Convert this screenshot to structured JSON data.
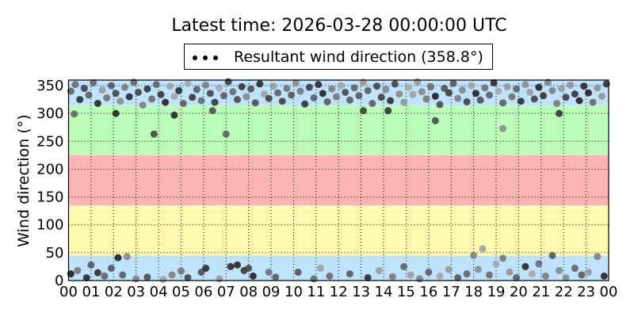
{
  "chart_data": {
    "type": "scatter",
    "title": "Latest time: 2026-03-28 00:00:00 UTC",
    "ylabel": "Wind direction (°)",
    "xlabel": "",
    "legend": {
      "label": "Resultant wind direction (358.8°)",
      "placement": "top-center-outside"
    },
    "xlim": [
      0,
      24
    ],
    "ylim": [
      0,
      360
    ],
    "grid": true,
    "x_tick_labels": [
      "00",
      "01",
      "02",
      "03",
      "04",
      "05",
      "06",
      "07",
      "08",
      "09",
      "10",
      "11",
      "12",
      "13",
      "14",
      "15",
      "16",
      "17",
      "18",
      "19",
      "20",
      "21",
      "22",
      "23",
      "00"
    ],
    "y_ticks": [
      0,
      50,
      100,
      150,
      200,
      250,
      300,
      350
    ],
    "bands": [
      {
        "from": 0,
        "to": 45,
        "color": "#bfe2fd"
      },
      {
        "from": 45,
        "to": 135,
        "color": "#fffbb0"
      },
      {
        "from": 135,
        "to": 225,
        "color": "#ffb4b4"
      },
      {
        "from": 225,
        "to": 315,
        "color": "#bbfdb9"
      },
      {
        "from": 315,
        "to": 360,
        "color": "#bfe2fd"
      }
    ],
    "points": [
      [
        0.1,
        340
      ],
      [
        0.3,
        352
      ],
      [
        0.5,
        325
      ],
      [
        0.7,
        345
      ],
      [
        0.9,
        333
      ],
      [
        1.1,
        355
      ],
      [
        1.3,
        318
      ],
      [
        1.5,
        342
      ],
      [
        1.7,
        328
      ],
      [
        1.9,
        350
      ],
      [
        2.1,
        336
      ],
      [
        2.3,
        322
      ],
      [
        2.5,
        347
      ],
      [
        2.7,
        330
      ],
      [
        2.9,
        356
      ],
      [
        3.1,
        338
      ],
      [
        3.3,
        315
      ],
      [
        3.5,
        344
      ],
      [
        3.7,
        326
      ],
      [
        3.9,
        352
      ],
      [
        4.1,
        334
      ],
      [
        4.3,
        320
      ],
      [
        4.5,
        349
      ],
      [
        4.7,
        331
      ],
      [
        4.9,
        341
      ],
      [
        5.1,
        318
      ],
      [
        5.3,
        354
      ],
      [
        5.5,
        329
      ],
      [
        5.7,
        343
      ],
      [
        5.9,
        323
      ],
      [
        6.1,
        351
      ],
      [
        6.3,
        336
      ],
      [
        6.5,
        320
      ],
      [
        6.7,
        346
      ],
      [
        6.9,
        332
      ],
      [
        7.1,
        357
      ],
      [
        7.3,
        339
      ],
      [
        7.5,
        325
      ],
      [
        7.7,
        348
      ],
      [
        7.9,
        330
      ],
      [
        8.1,
        344
      ],
      [
        8.3,
        319
      ],
      [
        8.5,
        353
      ],
      [
        8.7,
        335
      ],
      [
        8.9,
        327
      ],
      [
        9.1,
        349
      ],
      [
        9.3,
        337
      ],
      [
        9.5,
        322
      ],
      [
        9.7,
        345
      ],
      [
        9.9,
        333
      ],
      [
        10.1,
        355
      ],
      [
        10.3,
        340
      ],
      [
        10.5,
        317
      ],
      [
        10.7,
        347
      ],
      [
        10.9,
        328
      ],
      [
        11.1,
        352
      ],
      [
        11.3,
        336
      ],
      [
        11.5,
        321
      ],
      [
        11.7,
        344
      ],
      [
        11.9,
        330
      ],
      [
        12.1,
        350
      ],
      [
        12.3,
        338
      ],
      [
        12.5,
        324
      ],
      [
        12.7,
        346
      ],
      [
        12.9,
        332
      ],
      [
        13.1,
        356
      ],
      [
        13.3,
        341
      ],
      [
        13.5,
        318
      ],
      [
        13.7,
        349
      ],
      [
        13.9,
        329
      ],
      [
        14.1,
        343
      ],
      [
        14.3,
        323
      ],
      [
        14.5,
        353
      ],
      [
        14.7,
        335
      ],
      [
        14.9,
        320
      ],
      [
        15.1,
        347
      ],
      [
        15.3,
        334
      ],
      [
        15.5,
        357
      ],
      [
        15.7,
        339
      ],
      [
        15.9,
        326
      ],
      [
        16.1,
        348
      ],
      [
        16.3,
        331
      ],
      [
        16.5,
        316
      ],
      [
        16.7,
        345
      ],
      [
        16.9,
        337
      ],
      [
        17.1,
        354
      ],
      [
        17.3,
        327
      ],
      [
        17.5,
        342
      ],
      [
        17.7,
        321
      ],
      [
        17.9,
        350
      ],
      [
        18.1,
        336
      ],
      [
        18.3,
        324
      ],
      [
        18.5,
        346
      ],
      [
        18.7,
        333
      ],
      [
        18.9,
        355
      ],
      [
        19.1,
        340
      ],
      [
        19.3,
        319
      ],
      [
        19.5,
        348
      ],
      [
        19.7,
        330
      ],
      [
        19.9,
        344
      ],
      [
        20.1,
        322
      ],
      [
        20.3,
        352
      ],
      [
        20.5,
        338
      ],
      [
        20.7,
        326
      ],
      [
        20.9,
        347
      ],
      [
        21.1,
        332
      ],
      [
        21.3,
        356
      ],
      [
        21.5,
        341
      ],
      [
        21.7,
        318
      ],
      [
        21.9,
        345
      ],
      [
        22.1,
        329
      ],
      [
        22.3,
        351
      ],
      [
        22.5,
        335
      ],
      [
        22.7,
        323
      ],
      [
        22.9,
        349
      ],
      [
        23.1,
        337
      ],
      [
        23.3,
        320
      ],
      [
        23.5,
        346
      ],
      [
        23.7,
        331
      ],
      [
        23.9,
        353
      ],
      [
        0.25,
        299
      ],
      [
        2.1,
        300
      ],
      [
        3.8,
        263
      ],
      [
        7.0,
        263
      ],
      [
        4.7,
        297
      ],
      [
        6.4,
        305
      ],
      [
        13.1,
        305
      ],
      [
        16.3,
        287
      ],
      [
        19.3,
        273
      ],
      [
        14.2,
        305
      ],
      [
        21.8,
        300
      ],
      [
        0.1,
        12
      ],
      [
        0.4,
        18
      ],
      [
        0.8,
        5
      ],
      [
        1.0,
        28
      ],
      [
        1.3,
        14
      ],
      [
        1.6,
        8
      ],
      [
        1.9,
        22
      ],
      [
        2.2,
        41
      ],
      [
        2.6,
        43
      ],
      [
        2.4,
        10
      ],
      [
        3.0,
        3
      ],
      [
        3.5,
        6
      ],
      [
        4.2,
        2
      ],
      [
        4.6,
        10
      ],
      [
        5.0,
        17
      ],
      [
        5.3,
        5
      ],
      [
        5.9,
        15
      ],
      [
        6.1,
        22
      ],
      [
        6.7,
        3
      ],
      [
        7.2,
        25
      ],
      [
        7.5,
        28
      ],
      [
        7.8,
        18
      ],
      [
        8.0,
        22
      ],
      [
        8.2,
        8
      ],
      [
        8.9,
        15
      ],
      [
        9.2,
        6
      ],
      [
        10.2,
        15
      ],
      [
        10.9,
        3
      ],
      [
        11.2,
        22
      ],
      [
        11.6,
        8
      ],
      [
        12.5,
        12
      ],
      [
        13.3,
        5
      ],
      [
        13.8,
        18
      ],
      [
        14.4,
        7
      ],
      [
        14.9,
        25
      ],
      [
        15.2,
        10
      ],
      [
        15.6,
        3
      ],
      [
        16.0,
        15
      ],
      [
        16.5,
        8
      ],
      [
        16.9,
        20
      ],
      [
        17.3,
        5
      ],
      [
        17.7,
        12
      ],
      [
        18.0,
        45
      ],
      [
        18.2,
        20
      ],
      [
        18.4,
        57
      ],
      [
        18.7,
        10
      ],
      [
        19.0,
        30
      ],
      [
        19.3,
        40
      ],
      [
        19.6,
        15
      ],
      [
        19.9,
        5
      ],
      [
        20.3,
        25
      ],
      [
        20.6,
        12
      ],
      [
        20.9,
        30
      ],
      [
        21.2,
        8
      ],
      [
        21.5,
        45
      ],
      [
        21.8,
        18
      ],
      [
        22.1,
        5
      ],
      [
        22.5,
        22
      ],
      [
        22.8,
        10
      ],
      [
        23.1,
        15
      ],
      [
        23.5,
        43
      ],
      [
        23.8,
        8
      ]
    ]
  }
}
